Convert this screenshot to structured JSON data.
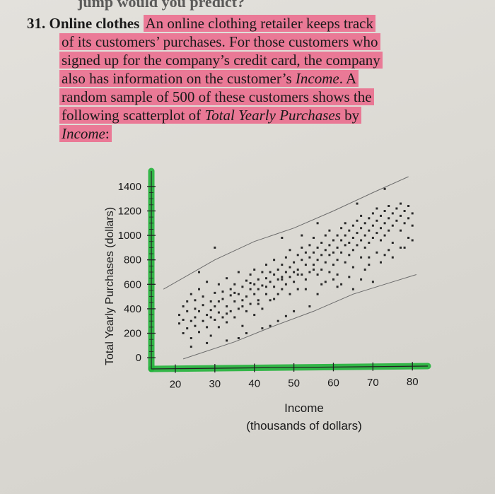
{
  "colors": {
    "highlight_pink": "#f03c6e",
    "axis_highlight_green": "#22b33a",
    "ink": "#1a1a1a"
  },
  "header": {
    "cut_text": "jump would you predict?"
  },
  "problem": {
    "number": "31.",
    "title": "Online clothes",
    "lines": [
      "An online clothing retailer keeps track",
      "of its customers’ purchases. For those customers who",
      "signed up for the company’s credit card, the company",
      "also has information on the customer’s",
      "random sample of 500 of these customers shows the",
      "following scatterplot of"
    ],
    "line4_italic": "Income",
    "line4_tail": ". A",
    "line6_italic": "Total Yearly Purchases",
    "line6_tail": " by",
    "line7_italic": "Income",
    "line7_tail": ":"
  },
  "chart_data": {
    "type": "scatter",
    "xlabel_line1": "Income",
    "xlabel_line2": "(thousands of dollars)",
    "ylabel": "Total Yearly Purchases (dollars)",
    "xlim": [
      15,
      83
    ],
    "ylim": [
      -80,
      1480
    ],
    "x_ticks": [
      20,
      30,
      40,
      50,
      60,
      70,
      80
    ],
    "y_ticks": [
      0,
      200,
      400,
      600,
      800,
      1000,
      1200,
      1400
    ],
    "n_points_described": 500,
    "band_upper": [
      [
        17,
        560
      ],
      [
        30,
        800
      ],
      [
        40,
        950
      ],
      [
        50,
        1060
      ],
      [
        60,
        1200
      ],
      [
        70,
        1350
      ],
      [
        79,
        1480
      ]
    ],
    "band_lower": [
      [
        22,
        -10
      ],
      [
        35,
        130
      ],
      [
        45,
        260
      ],
      [
        55,
        380
      ],
      [
        65,
        520
      ],
      [
        75,
        620
      ],
      [
        81,
        680
      ]
    ],
    "points": [
      [
        21,
        280
      ],
      [
        21,
        350
      ],
      [
        22,
        420
      ],
      [
        22,
        200
      ],
      [
        22,
        310
      ],
      [
        23,
        460
      ],
      [
        23,
        380
      ],
      [
        23,
        240
      ],
      [
        24,
        300
      ],
      [
        24,
        520
      ],
      [
        24,
        160
      ],
      [
        25,
        400
      ],
      [
        25,
        330
      ],
      [
        25,
        470
      ],
      [
        25,
        260
      ],
      [
        26,
        560
      ],
      [
        26,
        380
      ],
      [
        26,
        210
      ],
      [
        27,
        430
      ],
      [
        27,
        300
      ],
      [
        27,
        500
      ],
      [
        28,
        350
      ],
      [
        28,
        620
      ],
      [
        28,
        250
      ],
      [
        29,
        460
      ],
      [
        29,
        390
      ],
      [
        29,
        180
      ],
      [
        30,
        530
      ],
      [
        30,
        310
      ],
      [
        30,
        420
      ],
      [
        31,
        600
      ],
      [
        31,
        370
      ],
      [
        31,
        250
      ],
      [
        32,
        480
      ],
      [
        32,
        540
      ],
      [
        32,
        330
      ],
      [
        33,
        420
      ],
      [
        33,
        650
      ],
      [
        33,
        290
      ],
      [
        34,
        510
      ],
      [
        34,
        380
      ],
      [
        34,
        560
      ],
      [
        35,
        460
      ],
      [
        35,
        600
      ],
      [
        35,
        330
      ],
      [
        36,
        520
      ],
      [
        36,
        700
      ],
      [
        36,
        400
      ],
      [
        37,
        470
      ],
      [
        37,
        580
      ],
      [
        37,
        260
      ],
      [
        38,
        630
      ],
      [
        38,
        500
      ],
      [
        38,
        380
      ],
      [
        39,
        560
      ],
      [
        39,
        680
      ],
      [
        39,
        440
      ],
      [
        40,
        600
      ],
      [
        40,
        520
      ],
      [
        40,
        720
      ],
      [
        40,
        350
      ],
      [
        41,
        640
      ],
      [
        41,
        560
      ],
      [
        41,
        470
      ],
      [
        42,
        700
      ],
      [
        42,
        590
      ],
      [
        42,
        400
      ],
      [
        43,
        650
      ],
      [
        43,
        760
      ],
      [
        43,
        520
      ],
      [
        44,
        620
      ],
      [
        44,
        700
      ],
      [
        44,
        470
      ],
      [
        45,
        680
      ],
      [
        45,
        580
      ],
      [
        45,
        800
      ],
      [
        46,
        720
      ],
      [
        46,
        640
      ],
      [
        46,
        520
      ],
      [
        47,
        760
      ],
      [
        47,
        660
      ],
      [
        47,
        560
      ],
      [
        48,
        700
      ],
      [
        48,
        820
      ],
      [
        48,
        600
      ],
      [
        49,
        740
      ],
      [
        49,
        660
      ],
      [
        49,
        880
      ],
      [
        50,
        780
      ],
      [
        50,
        700
      ],
      [
        50,
        620
      ],
      [
        51,
        840
      ],
      [
        51,
        720
      ],
      [
        51,
        560
      ],
      [
        52,
        800
      ],
      [
        52,
        900
      ],
      [
        52,
        680
      ],
      [
        53,
        760
      ],
      [
        53,
        860
      ],
      [
        53,
        640
      ],
      [
        54,
        820
      ],
      [
        54,
        920
      ],
      [
        54,
        700
      ],
      [
        55,
        860
      ],
      [
        55,
        760
      ],
      [
        55,
        980
      ],
      [
        56,
        900
      ],
      [
        56,
        800
      ],
      [
        56,
        680
      ],
      [
        57,
        940
      ],
      [
        57,
        840
      ],
      [
        57,
        720
      ],
      [
        58,
        880
      ],
      [
        58,
        1000
      ],
      [
        58,
        780
      ],
      [
        59,
        920
      ],
      [
        59,
        840
      ],
      [
        59,
        1040
      ],
      [
        60,
        960
      ],
      [
        60,
        860
      ],
      [
        60,
        760
      ],
      [
        61,
        1000
      ],
      [
        61,
        900
      ],
      [
        61,
        800
      ],
      [
        62,
        960
      ],
      [
        62,
        1060
      ],
      [
        62,
        860
      ],
      [
        63,
        1000
      ],
      [
        63,
        920
      ],
      [
        63,
        1100
      ],
      [
        64,
        1040
      ],
      [
        64,
        940
      ],
      [
        64,
        840
      ],
      [
        65,
        1080
      ],
      [
        65,
        980
      ],
      [
        65,
        880
      ],
      [
        66,
        1020
      ],
      [
        66,
        1120
      ],
      [
        66,
        920
      ],
      [
        67,
        1060
      ],
      [
        67,
        960
      ],
      [
        67,
        1160
      ],
      [
        68,
        1100
      ],
      [
        68,
        1000
      ],
      [
        68,
        900
      ],
      [
        69,
        1140
      ],
      [
        69,
        1040
      ],
      [
        69,
        940
      ],
      [
        70,
        1080
      ],
      [
        70,
        1180
      ],
      [
        70,
        980
      ],
      [
        71,
        1120
      ],
      [
        71,
        1020
      ],
      [
        71,
        1220
      ],
      [
        72,
        1160
      ],
      [
        72,
        1060
      ],
      [
        72,
        960
      ],
      [
        73,
        1200
      ],
      [
        73,
        1100
      ],
      [
        73,
        1000
      ],
      [
        74,
        1140
      ],
      [
        74,
        1240
      ],
      [
        74,
        1040
      ],
      [
        75,
        1180
      ],
      [
        75,
        1080
      ],
      [
        76,
        1220
      ],
      [
        76,
        1120
      ],
      [
        77,
        1160
      ],
      [
        77,
        1260
      ],
      [
        78,
        1200
      ],
      [
        78,
        1100
      ],
      [
        79,
        1240
      ],
      [
        79,
        1140
      ],
      [
        80,
        1180
      ],
      [
        80,
        1080
      ],
      [
        58,
        620
      ],
      [
        60,
        640
      ],
      [
        62,
        600
      ],
      [
        64,
        660
      ],
      [
        68,
        720
      ],
      [
        72,
        780
      ],
      [
        75,
        820
      ],
      [
        44,
        260
      ],
      [
        46,
        300
      ],
      [
        48,
        340
      ],
      [
        50,
        380
      ],
      [
        54,
        420
      ],
      [
        38,
        200
      ],
      [
        42,
        240
      ],
      [
        36,
        160
      ],
      [
        28,
        120
      ],
      [
        33,
        140
      ],
      [
        30,
        900
      ],
      [
        26,
        700
      ],
      [
        65,
        560
      ],
      [
        70,
        620
      ],
      [
        52,
        1000
      ],
      [
        56,
        1100
      ],
      [
        47,
        980
      ],
      [
        73,
        1380
      ],
      [
        66,
        1260
      ],
      [
        24,
        90
      ],
      [
        56,
        520
      ],
      [
        61,
        580
      ],
      [
        67,
        640
      ],
      [
        78,
        900
      ],
      [
        79,
        980
      ],
      [
        74,
        880
      ],
      [
        69,
        820
      ],
      [
        31,
        460
      ],
      [
        35,
        530
      ],
      [
        39,
        610
      ],
      [
        43,
        580
      ],
      [
        47,
        640
      ],
      [
        51,
        680
      ],
      [
        55,
        720
      ],
      [
        59,
        700
      ],
      [
        63,
        780
      ],
      [
        67,
        820
      ],
      [
        71,
        860
      ],
      [
        75,
        940
      ],
      [
        77,
        1040
      ],
      [
        29,
        330
      ],
      [
        33,
        360
      ],
      [
        37,
        420
      ],
      [
        41,
        440
      ],
      [
        45,
        480
      ],
      [
        49,
        520
      ],
      [
        53,
        560
      ],
      [
        57,
        600
      ],
      [
        61,
        680
      ],
      [
        65,
        740
      ],
      [
        69,
        760
      ],
      [
        73,
        840
      ],
      [
        77,
        900
      ],
      [
        80,
        960
      ]
    ]
  }
}
